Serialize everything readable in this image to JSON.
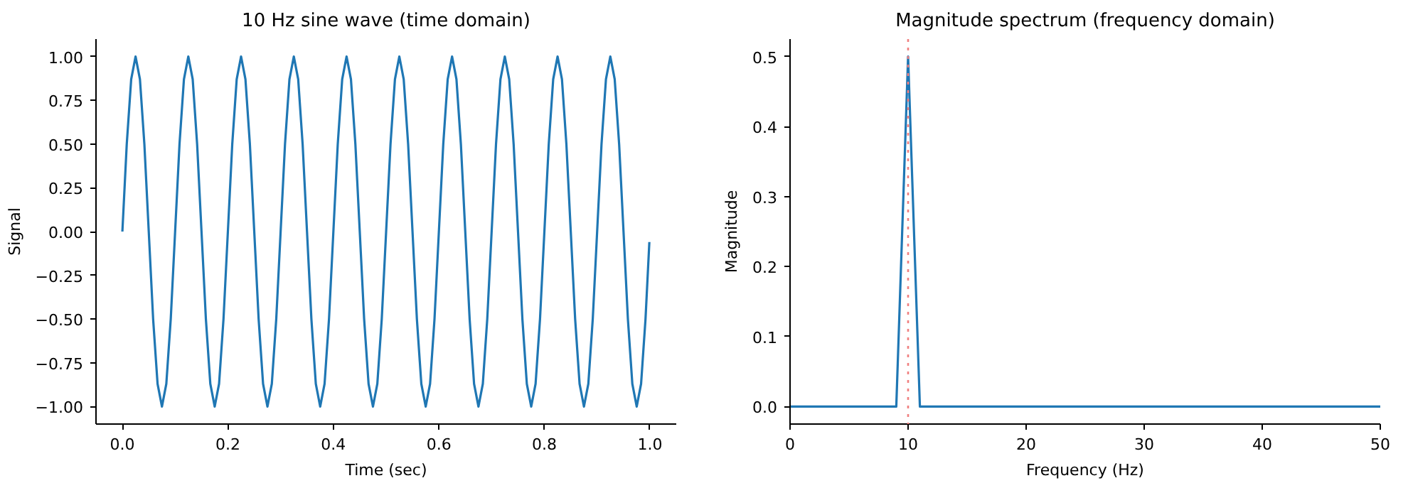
{
  "chart_data": [
    {
      "type": "line",
      "title": "10 Hz sine wave (time domain)",
      "xlabel": "Time (sec)",
      "ylabel": "Signal",
      "xlim": [
        -0.05,
        1.05
      ],
      "ylim": [
        -1.1,
        1.1
      ],
      "xticks": [
        {
          "value": 0,
          "label": "0.0"
        },
        {
          "value": 0.2,
          "label": "0.2"
        },
        {
          "value": 0.4,
          "label": "0.4"
        },
        {
          "value": 0.6,
          "label": "0.6"
        },
        {
          "value": 0.8,
          "label": "0.8"
        },
        {
          "value": 1,
          "label": "1.0"
        }
      ],
      "yticks": [
        {
          "value": -1,
          "label": "−1.00"
        },
        {
          "value": -0.75,
          "label": "−0.75"
        },
        {
          "value": -0.5,
          "label": "−0.50"
        },
        {
          "value": -0.25,
          "label": "−0.25"
        },
        {
          "value": 0,
          "label": "0.00"
        },
        {
          "value": 0.25,
          "label": "0.25"
        },
        {
          "value": 0.5,
          "label": "0.50"
        },
        {
          "value": 0.75,
          "label": "0.75"
        },
        {
          "value": 1,
          "label": "1.00"
        }
      ],
      "grid": false,
      "series": [
        {
          "color": "#1f77b4",
          "x": [
            0,
            0.0083,
            0.0167,
            0.025,
            0.0333,
            0.0417,
            0.05,
            0.0583,
            0.0667,
            0.075,
            0.0833,
            0.0917,
            0.1,
            0.1083,
            0.1167,
            0.125,
            0.1333,
            0.1417,
            0.15,
            0.1583,
            0.1667,
            0.175,
            0.1833,
            0.1917,
            0.2,
            0.2083,
            0.2167,
            0.225,
            0.2333,
            0.2417,
            0.25,
            0.2583,
            0.2667,
            0.275,
            0.2833,
            0.2917,
            0.3,
            0.3083,
            0.3167,
            0.325,
            0.3333,
            0.3417,
            0.35,
            0.3583,
            0.3667,
            0.375,
            0.3833,
            0.3917,
            0.4,
            0.4083,
            0.4167,
            0.425,
            0.4333,
            0.4417,
            0.45,
            0.4583,
            0.4667,
            0.475,
            0.4833,
            0.4917,
            0.5,
            0.5083,
            0.5167,
            0.525,
            0.5333,
            0.5417,
            0.55,
            0.5583,
            0.5667,
            0.575,
            0.5833,
            0.5917,
            0.6,
            0.6083,
            0.6167,
            0.625,
            0.6333,
            0.6417,
            0.65,
            0.6583,
            0.6667,
            0.675,
            0.6833,
            0.6917,
            0.7,
            0.7083,
            0.7167,
            0.725,
            0.7333,
            0.7417,
            0.75,
            0.7583,
            0.7667,
            0.775,
            0.7833,
            0.7917,
            0.8,
            0.8083,
            0.8167,
            0.825,
            0.8333,
            0.8417,
            0.85,
            0.8583,
            0.8667,
            0.875,
            0.8833,
            0.8917,
            0.9,
            0.9083,
            0.9167,
            0.925,
            0.9333,
            0.9417,
            0.95,
            0.9583,
            0.9667,
            0.975,
            0.9833,
            0.9917,
            0.999
          ],
          "values": [
            0,
            0.5,
            0.87,
            1,
            0.87,
            0.5,
            0,
            -0.5,
            -0.87,
            -1,
            -0.87,
            -0.5,
            0,
            0.5,
            0.87,
            1,
            0.87,
            0.5,
            0,
            -0.5,
            -0.87,
            -1,
            -0.87,
            -0.5,
            0,
            0.5,
            0.87,
            1,
            0.87,
            0.5,
            0,
            -0.5,
            -0.87,
            -1,
            -0.87,
            -0.5,
            0,
            0.5,
            0.87,
            1,
            0.87,
            0.5,
            0,
            -0.5,
            -0.87,
            -1,
            -0.87,
            -0.5,
            0,
            0.5,
            0.87,
            1,
            0.87,
            0.5,
            0,
            -0.5,
            -0.87,
            -1,
            -0.87,
            -0.5,
            0,
            0.5,
            0.87,
            1,
            0.87,
            0.5,
            0,
            -0.5,
            -0.87,
            -1,
            -0.87,
            -0.5,
            0,
            0.5,
            0.87,
            1,
            0.87,
            0.5,
            0,
            -0.5,
            -0.87,
            -1,
            -0.87,
            -0.5,
            0,
            0.5,
            0.87,
            1,
            0.87,
            0.5,
            0,
            -0.5,
            -0.87,
            -1,
            -0.87,
            -0.5,
            0,
            0.5,
            0.87,
            1,
            0.87,
            0.5,
            0,
            -0.5,
            -0.87,
            -1,
            -0.87,
            -0.5,
            0,
            0.5,
            0.87,
            1,
            0.87,
            0.5,
            0,
            -0.5,
            -0.87,
            -1,
            -0.87,
            -0.5,
            -0.06
          ]
        }
      ]
    },
    {
      "type": "line",
      "title": "Magnitude spectrum (frequency domain)",
      "xlabel": "Frequency (Hz)",
      "ylabel": "Magnitude",
      "xlim": [
        0,
        50
      ],
      "ylim": [
        -0.025,
        0.525
      ],
      "xticks": [
        0,
        10,
        20,
        30,
        40,
        50
      ],
      "yticks": [
        {
          "value": 0,
          "label": "0.0"
        },
        {
          "value": 0.1,
          "label": "0.1"
        },
        {
          "value": 0.2,
          "label": "0.2"
        },
        {
          "value": 0.3,
          "label": "0.3"
        },
        {
          "value": 0.4,
          "label": "0.4"
        },
        {
          "value": 0.5,
          "label": "0.5"
        }
      ],
      "grid": false,
      "ref_lines": [
        {
          "axis": "x",
          "value": 10,
          "color": "#f08080",
          "line_style": "dotted"
        }
      ],
      "series": [
        {
          "color": "#1f77b4",
          "x": [
            0,
            9,
            10,
            11,
            50
          ],
          "values": [
            0,
            0,
            0.5,
            0,
            0
          ]
        }
      ]
    }
  ]
}
